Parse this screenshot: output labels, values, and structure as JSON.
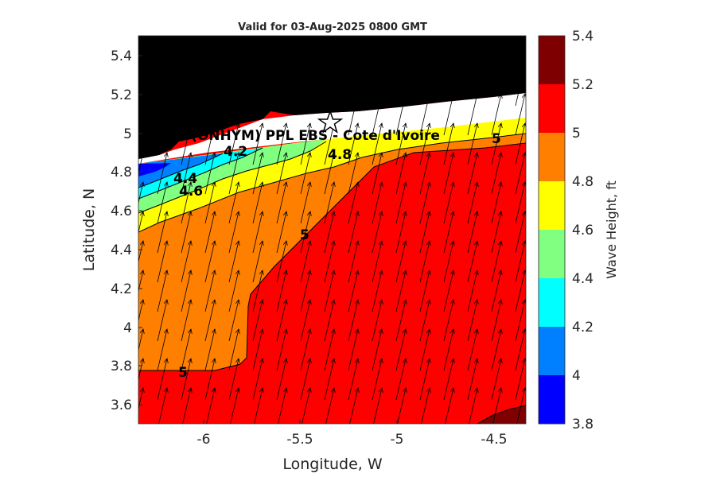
{
  "title": "Valid for 03-Aug-2025 0800 GMT",
  "xlabel": "Longitude, W",
  "ylabel": "Latitude, N",
  "x_ticks": [
    "-6",
    "-5.5",
    "-5",
    "-4.5"
  ],
  "y_ticks": [
    "5.4",
    "5.2",
    "5",
    "4.8",
    "4.6",
    "4.4",
    "4.2",
    "4",
    "3.8",
    "3.6"
  ],
  "colorbar": {
    "title": "Wave Height, ft",
    "ticks": [
      "5.4",
      "5.2",
      "5",
      "4.8",
      "4.6",
      "4.4",
      "4.2",
      "4",
      "3.8"
    ],
    "colors": [
      "#7f0000",
      "#ff0000",
      "#ff8000",
      "#ffff00",
      "#80ff80",
      "#00ffff",
      "#0080ff",
      "#0000ff"
    ]
  },
  "station": {
    "label": "(ONHYM) PPL EBS - Cote d'Ivoire",
    "marker": "star-icon"
  },
  "contour_labels": [
    "4.2",
    "4.4",
    "4.6",
    "4.8",
    "5",
    "5",
    "5"
  ],
  "colors": {
    "land": "#000000",
    "coast_gap": "#ffffff"
  },
  "chart_data": {
    "type": "heatmap",
    "title": "Valid for 03-Aug-2025 0800 GMT",
    "xlabel": "Longitude, W",
    "ylabel": "Latitude, N",
    "xlim": [
      -6.35,
      -4.35
    ],
    "ylim": [
      3.5,
      5.5
    ],
    "levels": [
      3.8,
      4.0,
      4.2,
      4.4,
      4.6,
      4.8,
      5.0,
      5.2,
      5.4
    ],
    "units": "ft",
    "field": "Significant wave height with direction vectors; heights increase offshore from about 4.0 ft near the coast to 5.0-5.2 ft in the south-east.",
    "station": {
      "name": "(ONHYM) PPL EBS - Cote d'Ivoire",
      "lon": -5.35,
      "lat": 5.05
    },
    "vector_direction": "toward north-north-east"
  }
}
